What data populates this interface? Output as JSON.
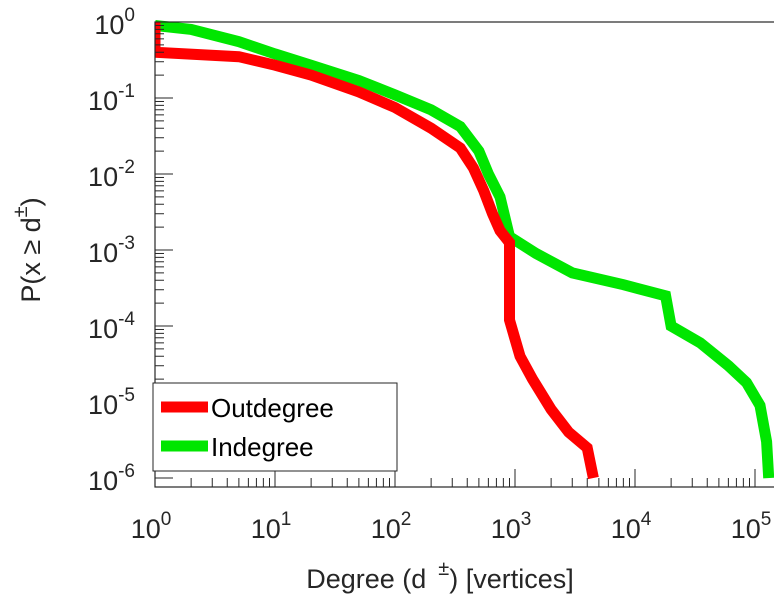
{
  "chart_data": {
    "type": "line",
    "title": "",
    "xlabel": {
      "before": "Degree (d",
      "superscript": "±",
      "after": ") [vertices]"
    },
    "ylabel": {
      "before": "P(x ≥ d",
      "superscript": "±",
      "after": ")"
    },
    "xscale": "log",
    "yscale": "log",
    "xlim": [
      1,
      100000
    ],
    "ylim": [
      1e-06,
      1
    ],
    "grid": false,
    "legend_location": "bottom-left",
    "x_ticks": [
      {
        "value": 1,
        "base": "10",
        "exp": "0"
      },
      {
        "value": 10,
        "base": "10",
        "exp": "1"
      },
      {
        "value": 100,
        "base": "10",
        "exp": "2"
      },
      {
        "value": 1000,
        "base": "10",
        "exp": "3"
      },
      {
        "value": 10000,
        "base": "10",
        "exp": "4"
      },
      {
        "value": 100000,
        "base": "10",
        "exp": "5"
      }
    ],
    "y_ticks": [
      {
        "value": 1,
        "base": "10",
        "exp": "0"
      },
      {
        "value": 0.1,
        "base": "10",
        "exp": "-1"
      },
      {
        "value": 0.01,
        "base": "10",
        "exp": "-2"
      },
      {
        "value": 0.001,
        "base": "10",
        "exp": "-3"
      },
      {
        "value": 0.0001,
        "base": "10",
        "exp": "-4"
      },
      {
        "value": 1e-05,
        "base": "10",
        "exp": "-5"
      },
      {
        "value": 1e-06,
        "base": "10",
        "exp": "-6"
      }
    ],
    "series": [
      {
        "name": "Outdegree",
        "color": "#ff0000",
        "points": [
          [
            1,
            1
          ],
          [
            1,
            0.4
          ],
          [
            5,
            0.35
          ],
          [
            10,
            0.27
          ],
          [
            20,
            0.2
          ],
          [
            50,
            0.12
          ],
          [
            100,
            0.075
          ],
          [
            200,
            0.04
          ],
          [
            350,
            0.022
          ],
          [
            450,
            0.012
          ],
          [
            550,
            0.006
          ],
          [
            650,
            0.003
          ],
          [
            750,
            0.0018
          ],
          [
            900,
            0.00125
          ],
          [
            900,
            0.00012
          ],
          [
            1100,
            4e-05
          ],
          [
            1400,
            2e-05
          ],
          [
            2000,
            8e-06
          ],
          [
            2800,
            4e-06
          ],
          [
            4000,
            2.5e-06
          ],
          [
            4500,
            1e-06
          ]
        ]
      },
      {
        "name": "Indegree",
        "color": "#00e600",
        "points": [
          [
            1,
            0.9
          ],
          [
            2,
            0.8
          ],
          [
            5,
            0.55
          ],
          [
            10,
            0.38
          ],
          [
            20,
            0.27
          ],
          [
            50,
            0.17
          ],
          [
            100,
            0.11
          ],
          [
            200,
            0.07
          ],
          [
            350,
            0.042
          ],
          [
            500,
            0.02
          ],
          [
            600,
            0.01
          ],
          [
            750,
            0.005
          ],
          [
            900,
            0.0015
          ],
          [
            1500,
            0.0009
          ],
          [
            3000,
            0.0005
          ],
          [
            8000,
            0.00035
          ],
          [
            18000,
            0.00025
          ],
          [
            20000,
            0.0001
          ],
          [
            35000,
            6e-05
          ],
          [
            60000,
            3e-05
          ],
          [
            85000,
            1.8e-05
          ],
          [
            110000,
            9e-06
          ],
          [
            125000,
            3e-06
          ],
          [
            130000,
            1e-06
          ]
        ]
      }
    ]
  }
}
